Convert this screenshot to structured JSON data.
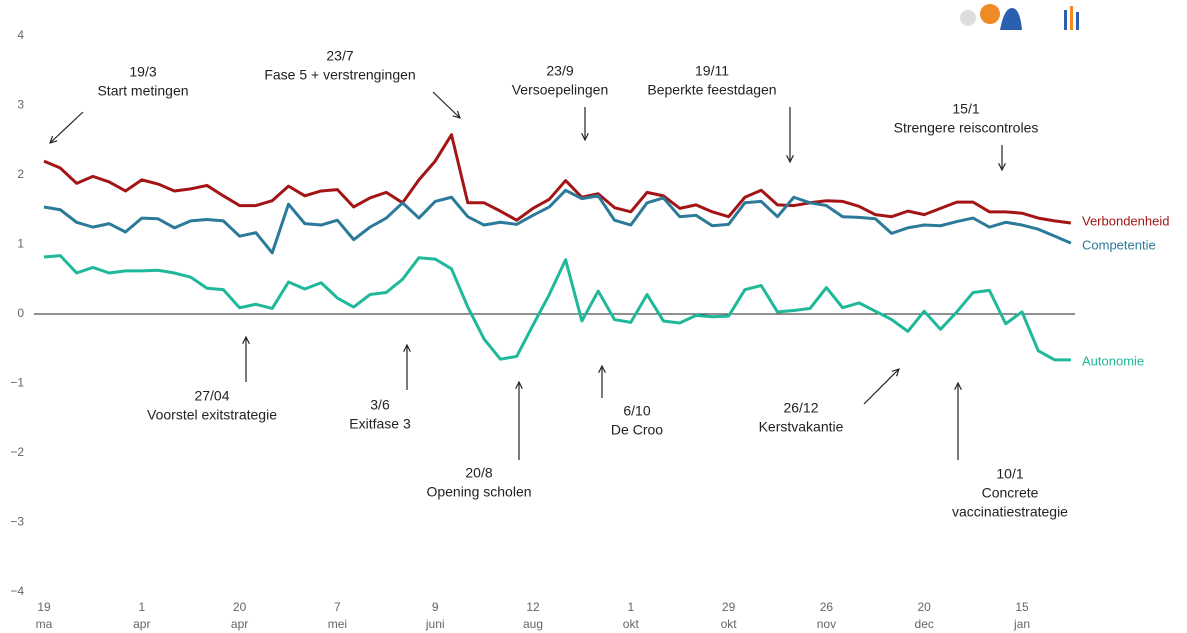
{
  "chart_data": {
    "type": "line",
    "categories": [
      "19 ma",
      null,
      null,
      null,
      null,
      null,
      "1 apr",
      null,
      null,
      null,
      null,
      null,
      "20 apr",
      null,
      null,
      null,
      null,
      null,
      "7 mei",
      null,
      null,
      null,
      null,
      null,
      "9 juni",
      null,
      null,
      null,
      null,
      null,
      "12 aug",
      null,
      null,
      null,
      null,
      null,
      "1 okt",
      null,
      null,
      null,
      null,
      null,
      "29 okt",
      null,
      null,
      null,
      null,
      null,
      "26 nov",
      null,
      null,
      null,
      null,
      null,
      "20 dec",
      null,
      null,
      null,
      null,
      null,
      "15 jan",
      null,
      null,
      null
    ],
    "series": [
      {
        "name": "Verbondenheid",
        "color": "#a31515",
        "values": [
          2.2,
          2.1,
          1.88,
          1.98,
          1.9,
          1.77,
          1.93,
          1.87,
          1.77,
          1.8,
          1.85,
          1.7,
          1.56,
          1.56,
          1.63,
          1.84,
          1.7,
          1.77,
          1.79,
          1.54,
          1.67,
          1.75,
          1.6,
          1.93,
          2.2,
          2.58,
          1.6,
          1.6,
          1.48,
          1.35,
          1.52,
          1.65,
          1.92,
          1.68,
          1.73,
          1.53,
          1.47,
          1.75,
          1.7,
          1.52,
          1.57,
          1.47,
          1.4,
          1.68,
          1.78,
          1.57,
          1.56,
          1.6,
          1.63,
          1.62,
          1.55,
          1.43,
          1.4,
          1.48,
          1.43,
          1.52,
          1.61,
          1.61,
          1.47,
          1.47,
          1.45,
          1.38,
          1.34,
          1.31
        ]
      },
      {
        "name": "Competentie",
        "color": "#2b7a99",
        "values": [
          1.54,
          1.5,
          1.32,
          1.25,
          1.3,
          1.18,
          1.38,
          1.37,
          1.24,
          1.34,
          1.36,
          1.34,
          1.12,
          1.17,
          0.88,
          1.58,
          1.3,
          1.28,
          1.35,
          1.07,
          1.25,
          1.38,
          1.6,
          1.38,
          1.62,
          1.68,
          1.4,
          1.28,
          1.32,
          1.29,
          1.42,
          1.54,
          1.78,
          1.66,
          1.7,
          1.35,
          1.28,
          1.6,
          1.67,
          1.4,
          1.42,
          1.27,
          1.29,
          1.6,
          1.62,
          1.4,
          1.68,
          1.6,
          1.56,
          1.4,
          1.39,
          1.37,
          1.16,
          1.24,
          1.28,
          1.27,
          1.33,
          1.38,
          1.25,
          1.32,
          1.28,
          1.22,
          1.12,
          1.02
        ]
      },
      {
        "name": "Autonomie",
        "color": "#1fb89a",
        "values": [
          0.82,
          0.84,
          0.59,
          0.67,
          0.59,
          0.62,
          0.62,
          0.63,
          0.59,
          0.53,
          0.37,
          0.35,
          0.09,
          0.14,
          0.08,
          0.46,
          0.36,
          0.45,
          0.23,
          0.1,
          0.28,
          0.31,
          0.5,
          0.81,
          0.79,
          0.65,
          0.1,
          -0.36,
          -0.65,
          -0.61,
          -0.16,
          0.28,
          0.78,
          -0.1,
          0.33,
          -0.08,
          -0.12,
          0.28,
          -0.1,
          -0.13,
          -0.02,
          -0.04,
          -0.03,
          0.35,
          0.41,
          0.03,
          0.05,
          0.08,
          0.38,
          0.09,
          0.16,
          0.04,
          -0.08,
          -0.25,
          0.04,
          -0.22,
          0.03,
          0.31,
          0.34,
          -0.14,
          0.03,
          -0.53,
          -0.66,
          -0.66
        ]
      }
    ],
    "ylim": [
      -4,
      4
    ],
    "yticks": [
      {
        "value": -4,
        "label": "−4"
      },
      {
        "value": -3,
        "label": "−3"
      },
      {
        "value": -2,
        "label": "−2"
      },
      {
        "value": -1,
        "label": "−1"
      },
      0,
      1,
      2,
      3,
      4
    ],
    "zero_line": true,
    "annotations": [
      {
        "date": "19/3",
        "lines": [
          "Start metingen"
        ]
      },
      {
        "date": "23/7",
        "lines": [
          "Fase 5 + verstrengingen"
        ]
      },
      {
        "date": "23/9",
        "lines": [
          "Versoepelingen"
        ]
      },
      {
        "date": "19/11",
        "lines": [
          "Beperkte feestdagen"
        ]
      },
      {
        "date": "15/1",
        "lines": [
          "Strengere reiscontroles"
        ]
      },
      {
        "date": "27/04",
        "lines": [
          "Voorstel exitstrategie"
        ]
      },
      {
        "date": "3/6",
        "lines": [
          "Exitfase 3"
        ]
      },
      {
        "date": "20/8",
        "lines": [
          "Opening scholen"
        ]
      },
      {
        "date": "6/10",
        "lines": [
          "De Croo"
        ]
      },
      {
        "date": "26/12",
        "lines": [
          "Kerstvakantie"
        ]
      },
      {
        "date": "10/1",
        "lines": [
          "Concrete",
          "vaccinatiestrategie"
        ]
      }
    ]
  }
}
